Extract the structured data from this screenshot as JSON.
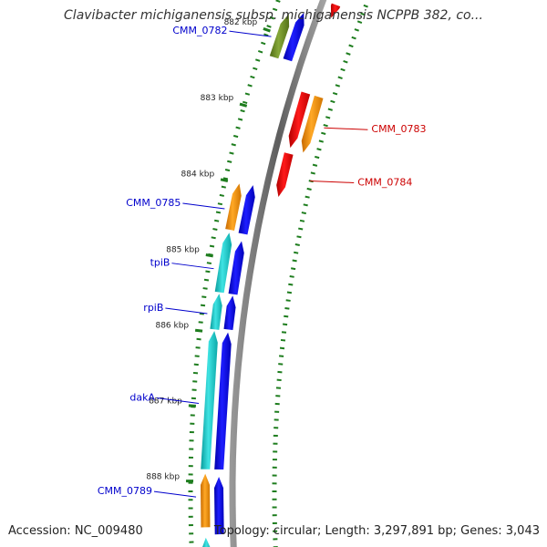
{
  "title": "Clavibacter michiganensis subsp. michiganensis NCPPB 382, co...",
  "footer": {
    "accession": "Accession: NC_009480",
    "summary": "Topology: circular; Length: 3,297,891 bp; Genes: 3,043"
  },
  "colors": {
    "backbone": "#8a8a8a",
    "forward_label": "#0000cc",
    "reverse_label": "#cc0000",
    "tick": "#1e7d1e",
    "cds_blue": "#0000ee",
    "cds_red": "#ee0000",
    "cds_orange": "#f08c00",
    "cds_cyan": "#12c4c4",
    "cds_olive": "#6b8c23"
  },
  "scale_labels": [
    {
      "label": "882 kbp",
      "pos_kbp": 882.0
    },
    {
      "label": "883 kbp",
      "pos_kbp": 883.0
    },
    {
      "label": "884 kbp",
      "pos_kbp": 884.0
    },
    {
      "label": "885 kbp",
      "pos_kbp": 885.0
    },
    {
      "label": "886 kbp",
      "pos_kbp": 886.0
    },
    {
      "label": "887 kbp",
      "pos_kbp": 887.0
    },
    {
      "label": "888 kbp",
      "pos_kbp": 888.0
    }
  ],
  "features": [
    {
      "ring": "left-outer",
      "color": "olive",
      "start_kbp": 881.72,
      "end_kbp": 882.3,
      "strand": "plus"
    },
    {
      "ring": "left-inner",
      "color": "blue",
      "start_kbp": 881.64,
      "end_kbp": 882.28,
      "strand": "plus"
    },
    {
      "ring": "right-inner",
      "color": "red",
      "start_kbp": 881.4,
      "end_kbp": 881.58,
      "strand": "minus"
    },
    {
      "ring": "right-inner",
      "color": "red",
      "start_kbp": 882.62,
      "end_kbp": 883.38,
      "strand": "minus"
    },
    {
      "ring": "right-outer",
      "color": "orange",
      "start_kbp": 882.62,
      "end_kbp": 883.4,
      "strand": "minus"
    },
    {
      "ring": "right-inner",
      "color": "red",
      "start_kbp": 883.46,
      "end_kbp": 884.06,
      "strand": "minus"
    },
    {
      "ring": "left-outer",
      "color": "orange",
      "start_kbp": 884.0,
      "end_kbp": 884.62,
      "strand": "plus"
    },
    {
      "ring": "left-inner",
      "color": "blue",
      "start_kbp": 883.98,
      "end_kbp": 884.64,
      "strand": "plus"
    },
    {
      "ring": "left-outer",
      "color": "cyan",
      "start_kbp": 884.66,
      "end_kbp": 885.46,
      "strand": "plus"
    },
    {
      "ring": "left-inner",
      "color": "blue",
      "start_kbp": 884.74,
      "end_kbp": 885.46,
      "strand": "plus"
    },
    {
      "ring": "left-outer",
      "color": "cyan",
      "start_kbp": 885.48,
      "end_kbp": 885.96,
      "strand": "plus"
    },
    {
      "ring": "left-inner",
      "color": "blue",
      "start_kbp": 885.48,
      "end_kbp": 885.94,
      "strand": "plus"
    },
    {
      "ring": "left-outer",
      "color": "cyan",
      "start_kbp": 885.98,
      "end_kbp": 887.84,
      "strand": "plus"
    },
    {
      "ring": "left-inner",
      "color": "blue",
      "start_kbp": 885.98,
      "end_kbp": 887.84,
      "strand": "plus"
    },
    {
      "ring": "left-outer",
      "color": "orange",
      "start_kbp": 887.9,
      "end_kbp": 888.62,
      "strand": "plus"
    },
    {
      "ring": "left-inner",
      "color": "blue",
      "start_kbp": 887.94,
      "end_kbp": 888.72,
      "strand": "plus"
    },
    {
      "ring": "left-outer",
      "color": "cyan",
      "start_kbp": 888.76,
      "end_kbp": 889.2,
      "strand": "plus"
    }
  ],
  "gene_labels": [
    {
      "text": "CMM_0782",
      "strand": "forward",
      "pos_kbp": 882.0
    },
    {
      "text": "CMM_0783",
      "strand": "reverse",
      "pos_kbp": 883.0
    },
    {
      "text": "CMM_0784",
      "strand": "reverse",
      "pos_kbp": 883.75
    },
    {
      "text": "CMM_0785",
      "strand": "forward",
      "pos_kbp": 884.3
    },
    {
      "text": "tpiB",
      "strand": "forward",
      "pos_kbp": 885.1
    },
    {
      "text": "rpiB",
      "strand": "forward",
      "pos_kbp": 885.7
    },
    {
      "text": "dakA",
      "strand": "forward",
      "pos_kbp": 886.9
    },
    {
      "text": "CMM_0789",
      "strand": "forward",
      "pos_kbp": 888.15
    }
  ]
}
